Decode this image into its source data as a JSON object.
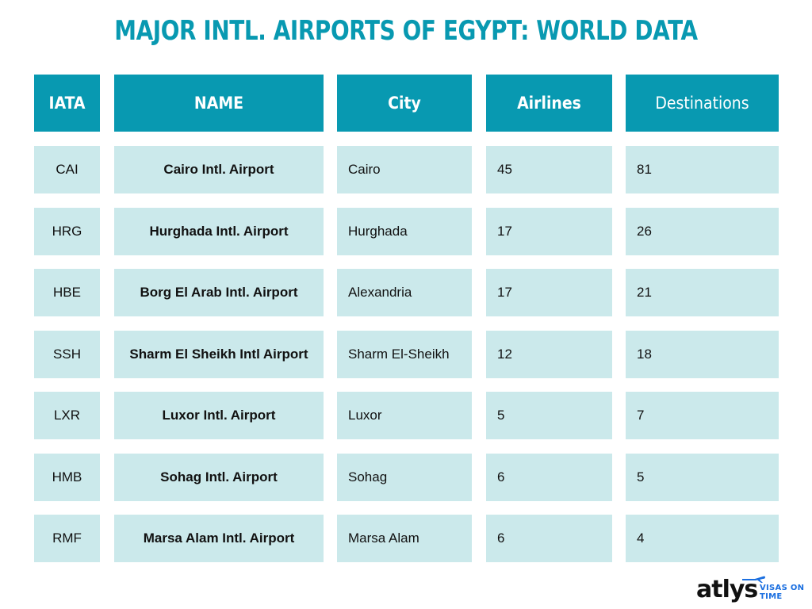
{
  "title": "MAJOR INTL. AIRPORTS OF EGYPT: WORLD DATA",
  "colors": {
    "title": "#0899b1",
    "header_bg": "#0899b1",
    "cell_bg": "#cbe9eb",
    "logo_accent": "#1b6fe0"
  },
  "logo": {
    "word": "atlys",
    "tagline_line1": "VISAS ON",
    "tagline_line2": "TIME",
    "icon": "airplane-icon"
  },
  "chart_data": {
    "type": "table",
    "columns": [
      "IATA",
      "NAME",
      "City",
      "Airlines",
      "Destinations"
    ],
    "rows": [
      [
        "CAI",
        "Cairo Intl. Airport",
        "Cairo",
        "45",
        "81"
      ],
      [
        "HRG",
        "Hurghada Intl. Airport",
        "Hurghada",
        "17",
        "26"
      ],
      [
        "HBE",
        "Borg El Arab Intl. Airport",
        "Alexandria",
        "17",
        "21"
      ],
      [
        "SSH",
        "Sharm El Sheikh Intl Airport",
        "Sharm El-Sheikh",
        "12",
        "18"
      ],
      [
        "LXR",
        "Luxor Intl. Airport",
        "Luxor",
        "5",
        "7"
      ],
      [
        "HMB",
        "Sohag Intl. Airport",
        "Sohag",
        "6",
        "5"
      ],
      [
        "RMF",
        "Marsa Alam Intl. Airport",
        "Marsa Alam",
        "6",
        "4"
      ]
    ]
  }
}
